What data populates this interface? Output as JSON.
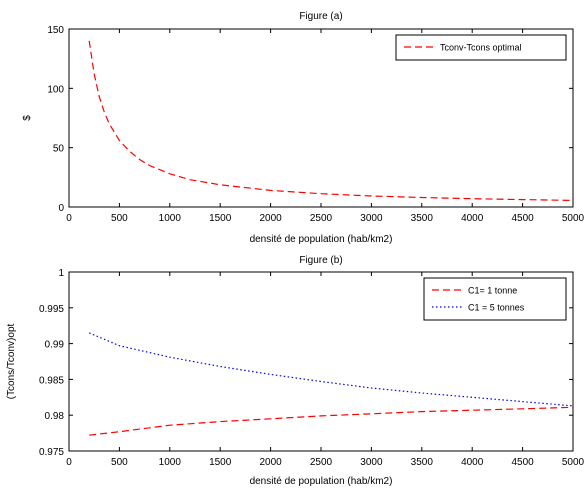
{
  "chart_data": [
    {
      "type": "line",
      "title": "Figure (a)",
      "xlabel": "densité de population (hab/km2)",
      "ylabel": "$",
      "xlim": [
        0,
        5000
      ],
      "ylim": [
        0,
        150
      ],
      "xticks": [
        0,
        500,
        1000,
        1500,
        2000,
        2500,
        3000,
        3500,
        4000,
        4500,
        5000
      ],
      "yticks": [
        0,
        50,
        100,
        150
      ],
      "grid": false,
      "legend": "top-right",
      "series": [
        {
          "name": "Tconv-Tcons optimal",
          "color": "#ff0000",
          "dash": "dashed",
          "x": [
            200,
            250,
            300,
            350,
            400,
            500,
            600,
            700,
            800,
            1000,
            1200,
            1500,
            2000,
            2500,
            3000,
            3500,
            4000,
            4500,
            5000
          ],
          "y": [
            140,
            112,
            93,
            80,
            70,
            56,
            47,
            40,
            35,
            28,
            23,
            18.7,
            14,
            11.2,
            9.3,
            8,
            7,
            6.2,
            5.6
          ]
        }
      ]
    },
    {
      "type": "line",
      "title": "Figure (b)",
      "xlabel": "densité de population (hab/km2)",
      "ylabel": "(Tcons/Tconv)opt",
      "xlim": [
        0,
        5000
      ],
      "ylim": [
        0.975,
        1
      ],
      "xticks": [
        0,
        500,
        1000,
        1500,
        2000,
        2500,
        3000,
        3500,
        4000,
        4500,
        5000
      ],
      "yticks": [
        0.975,
        0.98,
        0.985,
        0.99,
        0.995,
        1
      ],
      "ytick_labels": [
        "0.975",
        "0.98",
        "0.985",
        "0.99",
        "0.995",
        "1"
      ],
      "grid": false,
      "legend": "top-right",
      "series": [
        {
          "name": "C1= 1 tonne",
          "color": "#ff0000",
          "dash": "dashed",
          "x": [
            200,
            500,
            1000,
            1500,
            2000,
            2500,
            3000,
            3500,
            4000,
            4500,
            5000
          ],
          "y": [
            0.9772,
            0.9777,
            0.9786,
            0.9791,
            0.9795,
            0.9799,
            0.9802,
            0.9805,
            0.9807,
            0.9809,
            0.9811
          ]
        },
        {
          "name": "C1 = 5 tonnes",
          "color": "#0000ff",
          "dash": "dotted",
          "x": [
            200,
            500,
            1000,
            1500,
            2000,
            2500,
            3000,
            3500,
            4000,
            4500,
            5000
          ],
          "y": [
            0.9915,
            0.9897,
            0.9881,
            0.9868,
            0.9857,
            0.9847,
            0.9838,
            0.9831,
            0.9825,
            0.9819,
            0.9813
          ]
        }
      ]
    }
  ]
}
